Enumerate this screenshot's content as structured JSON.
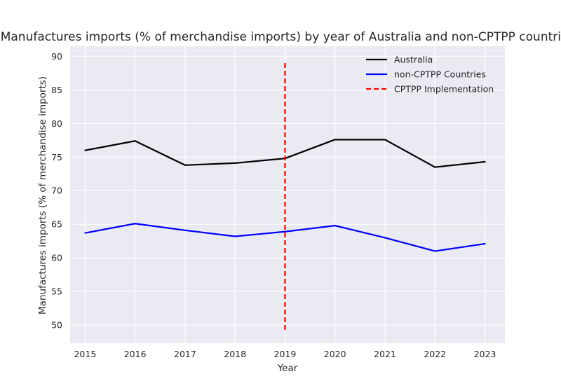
{
  "chart_data": {
    "type": "line",
    "title": "Manufactures imports (% of merchandise imports) by year of Australia and non-CPTPP countries",
    "xlabel": "Year",
    "ylabel": "Manufactures imports (% of merchandise imports)",
    "x": [
      2015,
      2016,
      2017,
      2018,
      2019,
      2020,
      2021,
      2022,
      2023
    ],
    "xlim": [
      2014.7,
      2023.4
    ],
    "ylim": [
      47.3,
      91.5
    ],
    "yticks": [
      50,
      55,
      60,
      65,
      70,
      75,
      80,
      85,
      90
    ],
    "grid": true,
    "legend_position": "top-right",
    "series": [
      {
        "name": "Australia",
        "color": "#000000",
        "values": [
          76.0,
          77.4,
          73.8,
          74.1,
          74.8,
          77.6,
          77.6,
          73.5,
          74.3
        ]
      },
      {
        "name": "non-CPTPP Countries",
        "color": "#0000ff",
        "values": [
          63.7,
          65.1,
          64.1,
          63.2,
          63.9,
          64.8,
          63.0,
          61.0,
          62.1
        ]
      }
    ],
    "annotations": [
      {
        "name": "CPTPP Implementation",
        "type": "vline",
        "x": 2019,
        "y_range": [
          49.3,
          89.0
        ],
        "color": "#ff0000",
        "style": "dashed"
      }
    ],
    "colors": {
      "plot_background": "#eaeaf2",
      "grid": "#ffffff",
      "text": "#262626"
    }
  }
}
